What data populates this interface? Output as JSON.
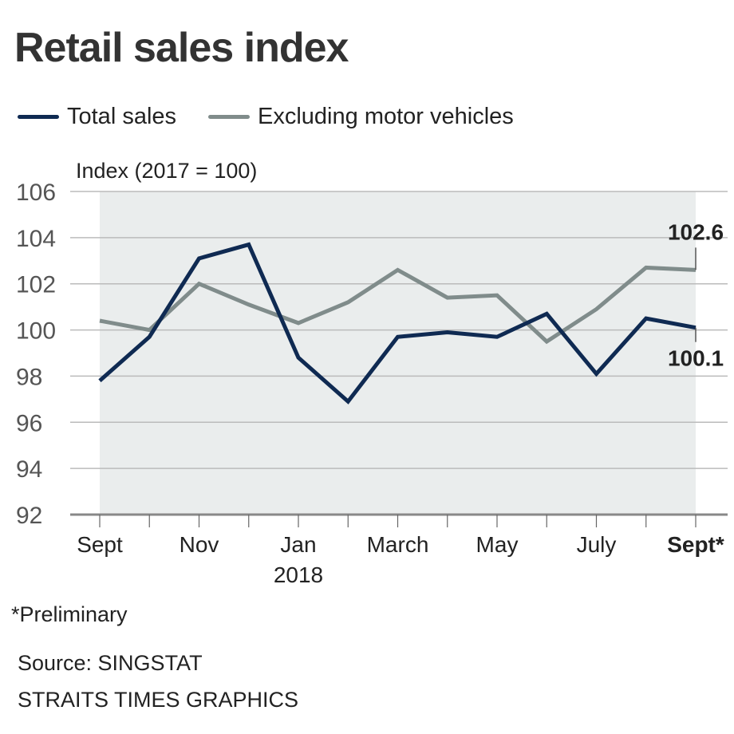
{
  "chart_data": {
    "type": "line",
    "title": "Retail sales index",
    "ylabel": "Index (2017 = 100)",
    "ylim": [
      92,
      106
    ],
    "yticks": [
      92,
      94,
      96,
      98,
      100,
      102,
      104,
      106
    ],
    "grid": true,
    "legend_placement": "top-left",
    "x": [
      "Sept 2017",
      "Oct 2017",
      "Nov 2017",
      "Dec 2017",
      "Jan 2018",
      "Feb 2018",
      "March 2018",
      "Apr 2018",
      "May 2018",
      "June 2018",
      "July 2018",
      "Aug 2018",
      "Sept 2018"
    ],
    "xtick_labels": [
      {
        "index": 0,
        "label": "Sept"
      },
      {
        "index": 2,
        "label": "Nov"
      },
      {
        "index": 4,
        "label": "Jan",
        "sublabel": "2018"
      },
      {
        "index": 6,
        "label": "March"
      },
      {
        "index": 8,
        "label": "May"
      },
      {
        "index": 10,
        "label": "July"
      },
      {
        "index": 12,
        "label": "Sept*",
        "bold": true
      }
    ],
    "series": [
      {
        "name": "Total sales",
        "color": "#0f2a52",
        "values": [
          97.8,
          99.7,
          103.1,
          103.7,
          98.8,
          96.9,
          99.7,
          99.9,
          99.7,
          100.7,
          98.1,
          100.5,
          100.1
        ]
      },
      {
        "name": "Excluding motor vehicles",
        "color": "#808c8b",
        "values": [
          100.4,
          100.0,
          102.0,
          101.1,
          100.3,
          101.2,
          102.6,
          101.4,
          101.5,
          99.5,
          100.9,
          102.7,
          102.6
        ]
      }
    ],
    "annotations": [
      {
        "series": 1,
        "index": 12,
        "label": "102.6"
      },
      {
        "series": 0,
        "index": 12,
        "label": "100.1"
      }
    ],
    "area_fill_color": "#eaeded"
  },
  "footer": {
    "note": "*Preliminary",
    "source": "Source: SINGSTAT",
    "credit": "STRAITS TIMES GRAPHICS"
  }
}
